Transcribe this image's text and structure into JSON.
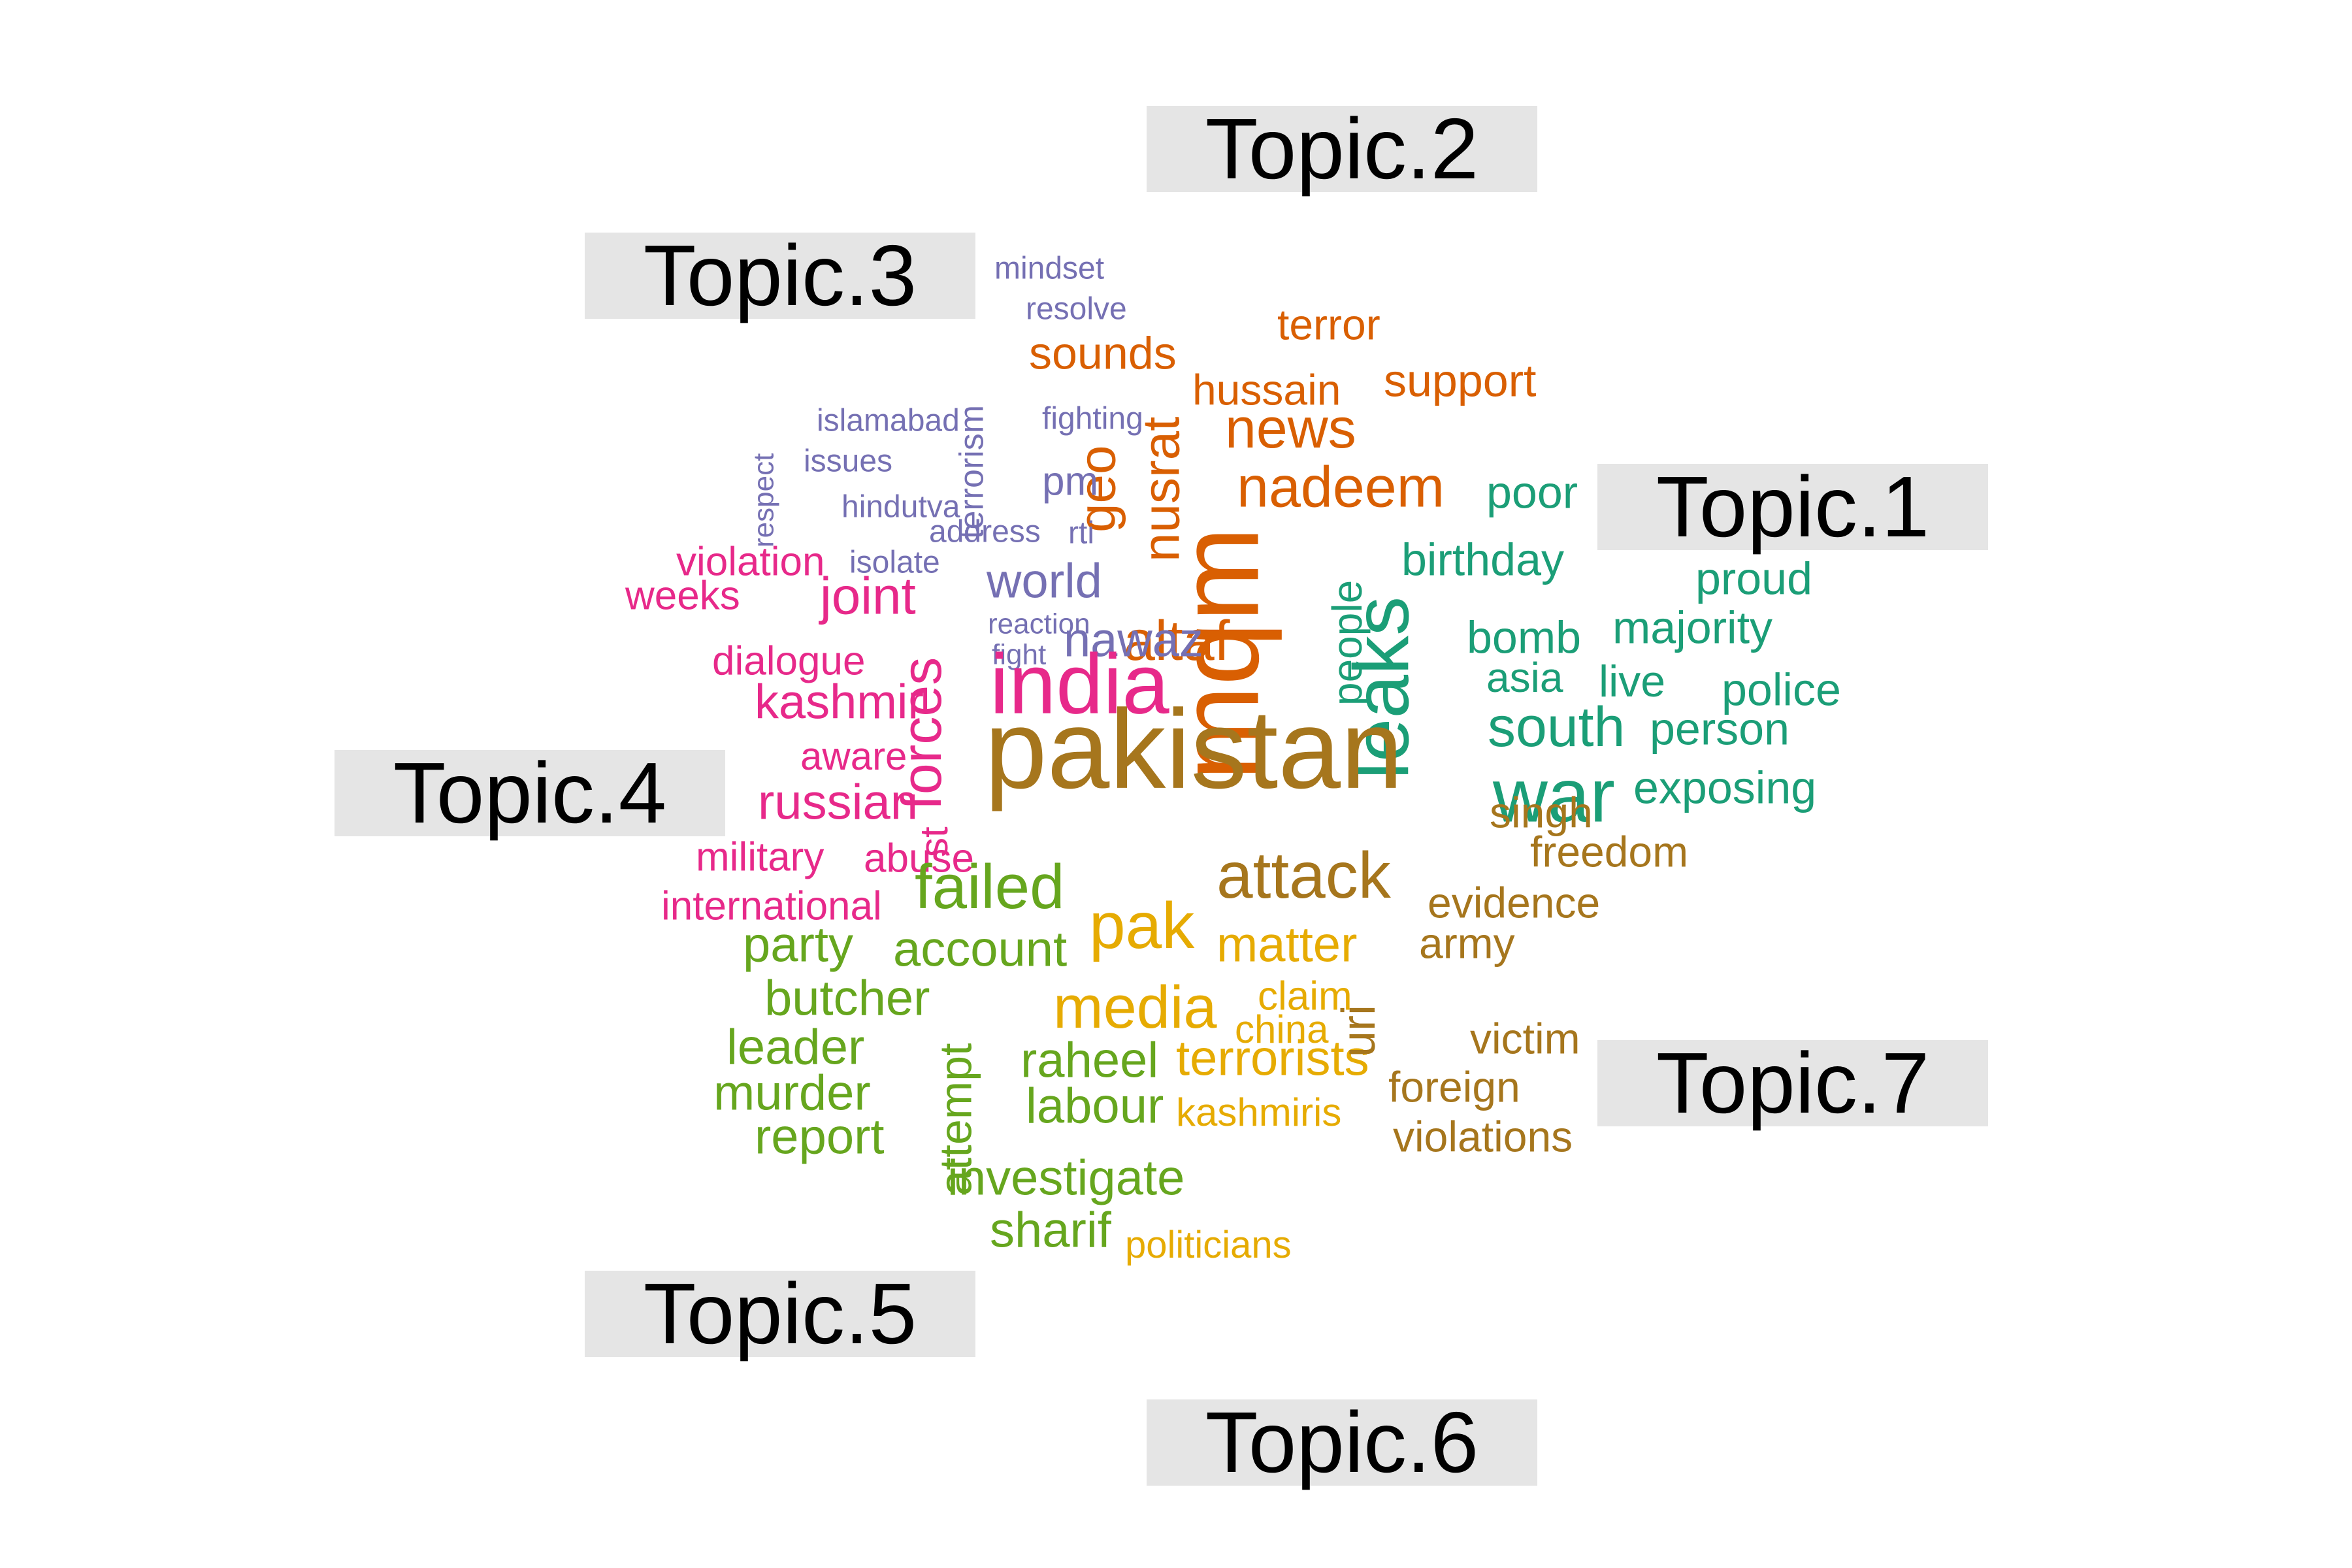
{
  "topics": [
    {
      "label": "Topic.1",
      "color": "#1B9E77",
      "words": [
        "leaks",
        "war",
        "south",
        "people",
        "birthday",
        "bomb",
        "majority",
        "poor",
        "proud",
        "asia",
        "live",
        "police",
        "person",
        "exposing"
      ]
    },
    {
      "label": "Topic.2",
      "color": "#D95F02",
      "words": [
        "mqm",
        "altaf",
        "nadeem",
        "news",
        "nusrat",
        "geo",
        "hussain",
        "sounds",
        "terror",
        "support"
      ]
    },
    {
      "label": "Topic.3",
      "color": "#7570B3",
      "words": [
        "nawaz",
        "world",
        "pm",
        "terrorism",
        "fighting",
        "islamabad",
        "issues",
        "respect",
        "hindutva",
        "address",
        "rti",
        "isolate",
        "reaction",
        "fight",
        "mindset",
        "resolve"
      ]
    },
    {
      "label": "Topic.4",
      "color": "#E7298A",
      "words": [
        "india",
        "forces",
        "joint",
        "kashmir",
        "russian",
        "violation",
        "weeks",
        "dialogue",
        "aware",
        "st",
        "military",
        "abuse",
        "international"
      ]
    },
    {
      "label": "Topic.5",
      "color": "#66A61E",
      "words": [
        "failed",
        "account",
        "party",
        "butcher",
        "leader",
        "murder",
        "report",
        "attempt",
        "raheel",
        "labour",
        "investigate",
        "sharif"
      ]
    },
    {
      "label": "Topic.6",
      "color": "#E6AB02",
      "words": [
        "pak",
        "media",
        "matter",
        "terrorists",
        "claim",
        "china",
        "kashmiris",
        "politicians"
      ]
    },
    {
      "label": "Topic.7",
      "color": "#A6761D",
      "words": [
        "pakistan",
        "attack",
        "uri",
        "singh",
        "freedom",
        "evidence",
        "army",
        "victim",
        "foreign",
        "violations"
      ]
    }
  ]
}
